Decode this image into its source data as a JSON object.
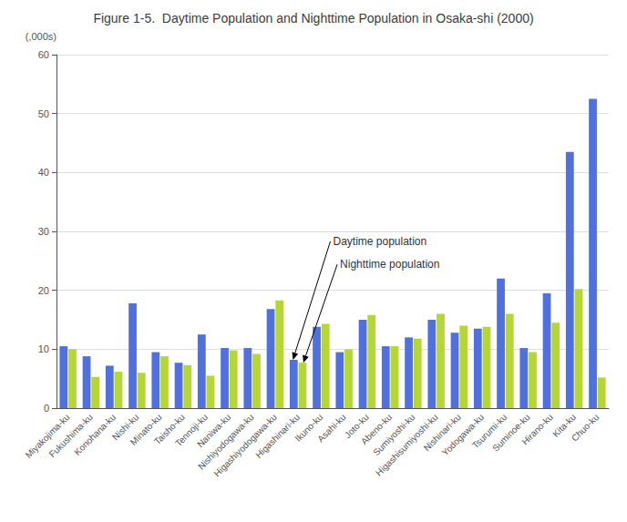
{
  "chart_data": {
    "type": "bar",
    "title": "Figure 1-5.  Daytime Population and Nighttime Population in Osaka-shi (2000)",
    "y_label": "(,000s)",
    "categories": [
      "Miyakojima-ku",
      "Fukushima-ku",
      "Konohana-ku",
      "Nishi-ku",
      "Minato-ku",
      "Taisho-ku",
      "Tennoji-ku",
      "Naniwa-ku",
      "Nishiyodogawa-ku",
      "Higashiyodogawa-ku",
      "Higashinari-ku",
      "Ikuno-ku",
      "Asahi-ku",
      "Joto-ku",
      "Abeno-ku",
      "Sumiyoshi-ku",
      "Higashisumiyoshi-ku",
      "Nishinari-ku",
      "Yodogawa-ku",
      "Tsurumi-ku",
      "Suminoe-ku",
      "Hirano-ku",
      "Kita-ku",
      "Chuo-ku"
    ],
    "series": [
      {
        "name": "Daytime population",
        "values": [
          10.5,
          8.8,
          7.2,
          17.8,
          9.5,
          7.7,
          12.5,
          10.2,
          10.2,
          16.8,
          8.2,
          13.8,
          9.5,
          15.0,
          10.5,
          12.0,
          15.0,
          12.8,
          13.5,
          22.0,
          10.2,
          19.5,
          43.5,
          52.5
        ]
      },
      {
        "name": "Nighttime population",
        "values": [
          10.0,
          5.3,
          6.2,
          6.0,
          8.8,
          7.3,
          5.5,
          9.8,
          9.2,
          18.3,
          7.7,
          14.3,
          10.0,
          15.8,
          10.5,
          11.8,
          16.0,
          14.0,
          13.8,
          16.0,
          9.5,
          14.5,
          20.2,
          5.2
        ]
      }
    ],
    "ylim": [
      0,
      60
    ],
    "yticks": [
      0,
      10,
      20,
      30,
      40,
      50,
      60
    ],
    "grid": true,
    "annotations": [
      {
        "text": "Daytime population",
        "series": "Daytime population",
        "category": "Higashinari-ku"
      },
      {
        "text": "Nighttime population",
        "series": "Nighttime population",
        "category": "Higashinari-ku"
      }
    ]
  }
}
